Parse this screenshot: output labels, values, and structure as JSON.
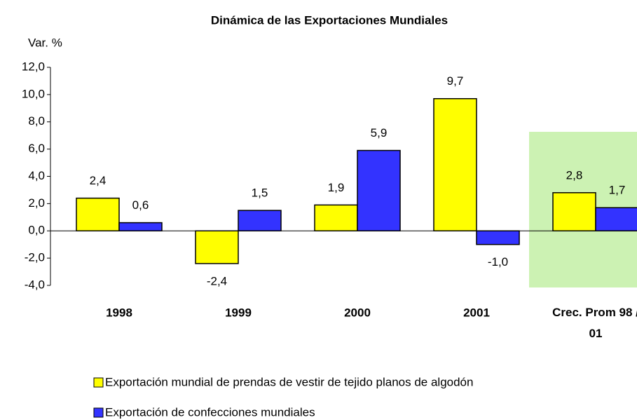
{
  "chart_data": {
    "type": "bar",
    "title": "Dinámica de las Exportaciones Mundiales",
    "y_label": "Var. %",
    "categories": [
      "1998",
      "1999",
      "2000",
      "2001",
      "Crec. Prom 98 / 01"
    ],
    "series": [
      {
        "name": "Exportación mundial de prendas de vestir de tejido planos de algodón",
        "color": "#ffff00",
        "values": [
          2.4,
          -2.4,
          1.9,
          9.7,
          2.8
        ],
        "value_labels": [
          "2,4",
          "-2,4",
          "1,9",
          "9,7",
          "2,8"
        ]
      },
      {
        "name": "Exportación de confecciones mundiales",
        "color": "#3333ff",
        "values": [
          0.6,
          1.5,
          5.9,
          -1.0,
          1.7
        ],
        "value_labels": [
          "0,6",
          "1,5",
          "5,9",
          "-1,0",
          "1,7"
        ]
      }
    ],
    "ylim": [
      -4,
      12
    ],
    "yticks": [
      {
        "value": -4,
        "label": "-4,0"
      },
      {
        "value": -2,
        "label": "-2,0"
      },
      {
        "value": 0,
        "label": "0,0"
      },
      {
        "value": 2,
        "label": "2,0"
      },
      {
        "value": 4,
        "label": "4,0"
      },
      {
        "value": 6,
        "label": "6,0"
      },
      {
        "value": 8,
        "label": "8,0"
      },
      {
        "value": 10,
        "label": "10,0"
      },
      {
        "value": 12,
        "label": "12,0"
      }
    ],
    "grid": false
  }
}
